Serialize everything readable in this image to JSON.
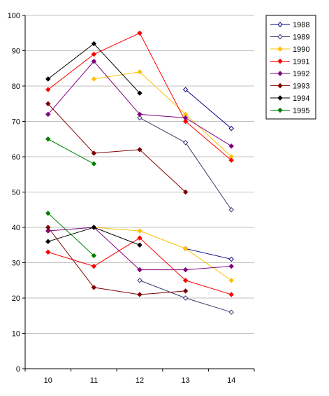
{
  "chart_data": {
    "type": "line",
    "x": [
      10,
      11,
      12,
      13,
      14
    ],
    "ylim": [
      0,
      100
    ],
    "yticks": [
      0,
      10,
      20,
      30,
      40,
      50,
      60,
      70,
      80,
      90,
      100
    ],
    "grid": "horizontal",
    "legend_position": "right",
    "title": "",
    "xlabel": "",
    "ylabel": "",
    "series": [
      {
        "name": "1988",
        "color": "#000080",
        "marker": "diamond-open",
        "upper": [
          null,
          null,
          null,
          null,
          null
        ],
        "lower": [
          null,
          null,
          null,
          34,
          31
        ]
      },
      {
        "name": "1989",
        "color": "#3a3a6a",
        "marker": "diamond-open",
        "upper": [
          null,
          null,
          71,
          64,
          45
        ],
        "lower": [
          null,
          null,
          25,
          20,
          16
        ]
      },
      {
        "name": "1990",
        "color": "#ffc000",
        "marker": "diamond",
        "upper": [
          null,
          82,
          84,
          72,
          60
        ],
        "lower": [
          null,
          40,
          39,
          34,
          25
        ]
      },
      {
        "name": "1991",
        "color": "#ff0000",
        "marker": "diamond",
        "upper": [
          79,
          89,
          95,
          70,
          59
        ],
        "lower": [
          33,
          29,
          37,
          25,
          21
        ]
      },
      {
        "name": "1992",
        "color": "#800080",
        "marker": "diamond",
        "upper": [
          72,
          87,
          72,
          71,
          63
        ],
        "lower": [
          39,
          40,
          28,
          28,
          29
        ]
      },
      {
        "name": "1993",
        "color": "#800000",
        "marker": "diamond",
        "upper": [
          75,
          61,
          62,
          50,
          null
        ],
        "lower": [
          40,
          23,
          21,
          22,
          null
        ]
      },
      {
        "name": "1994",
        "color": "#000000",
        "marker": "diamond",
        "upper": [
          82,
          92,
          78,
          null,
          null
        ],
        "lower": [
          36,
          40,
          35,
          null,
          null
        ]
      },
      {
        "name": "1995",
        "color": "#008000",
        "marker": "diamond",
        "upper": [
          65,
          58,
          null,
          null,
          null
        ],
        "lower": [
          44,
          32,
          null,
          null,
          null
        ]
      }
    ],
    "extra_segments": [
      {
        "series": "1988",
        "points": [
          [
            13,
            79
          ],
          [
            14,
            68
          ]
        ]
      }
    ]
  }
}
